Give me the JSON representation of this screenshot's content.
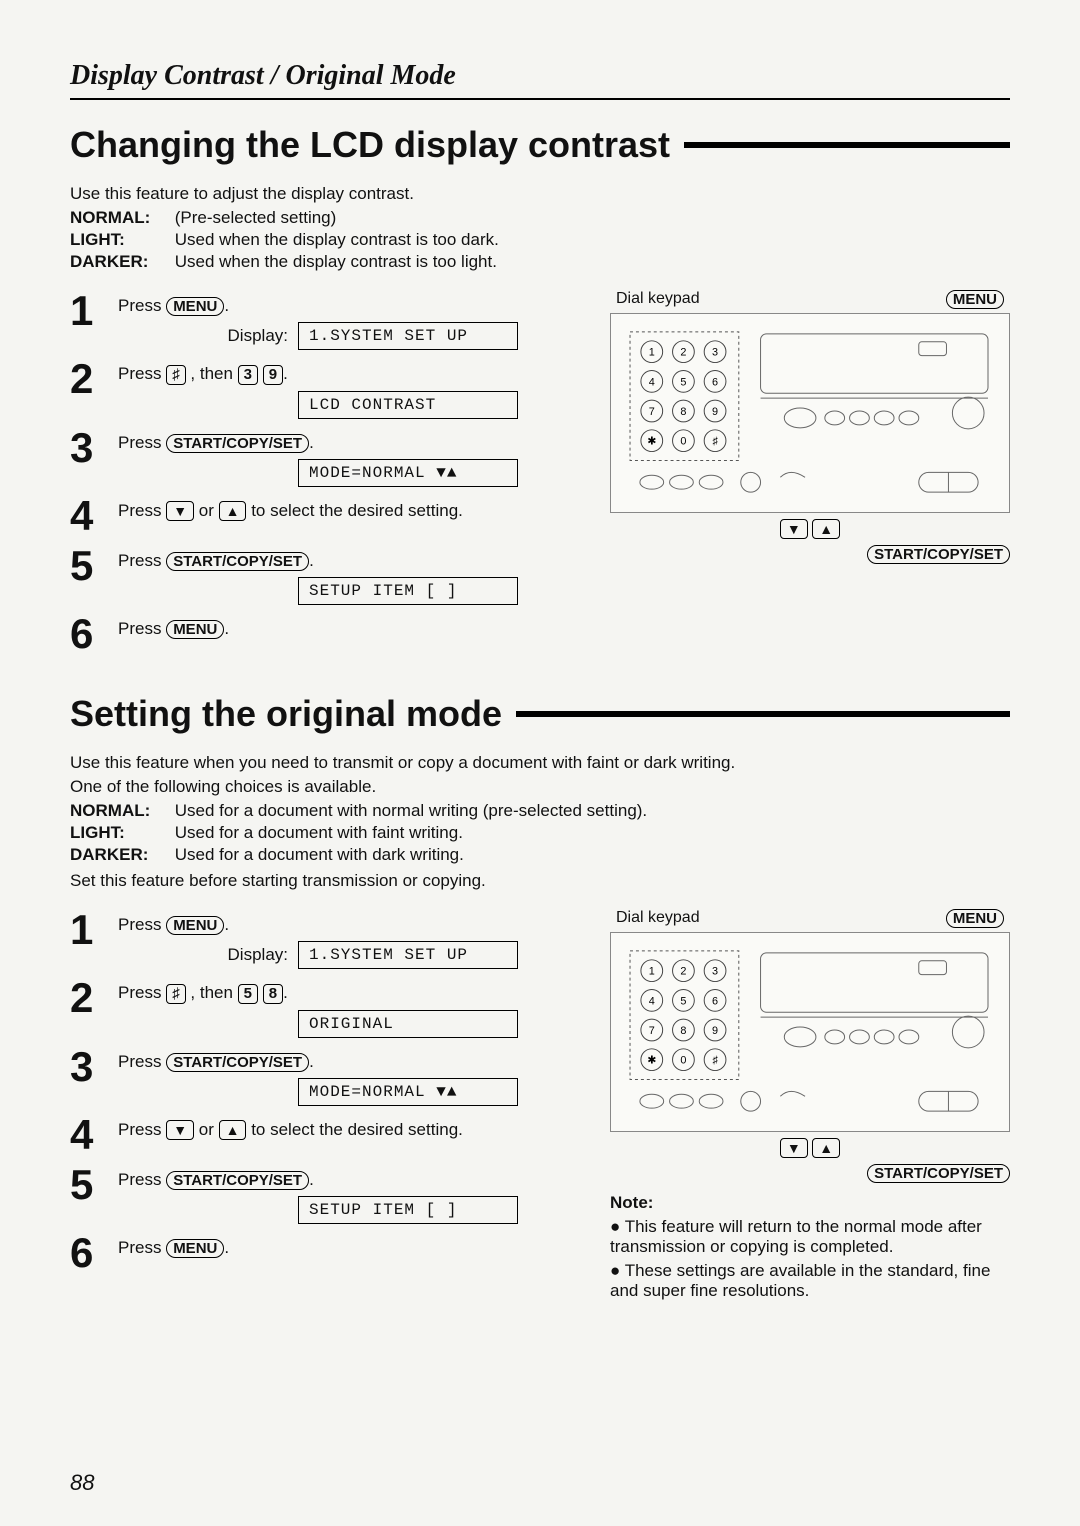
{
  "page_header": "Display Contrast / Original Mode",
  "page_number": "88",
  "section1": {
    "heading": "Changing the LCD display contrast",
    "intro": "Use this feature to adjust the display contrast.",
    "defs": [
      {
        "term": "NORMAL:",
        "desc": "(Pre-selected setting)"
      },
      {
        "term": "LIGHT:",
        "desc": "Used when the display contrast is too dark."
      },
      {
        "term": "DARKER:",
        "desc": "Used when the display contrast is too light."
      }
    ],
    "steps": [
      {
        "n": "1",
        "pre": "Press ",
        "btn": "MENU",
        "post": ".",
        "show_display_label": true,
        "lcd": "1.SYSTEM SET UP"
      },
      {
        "n": "2",
        "pre": "Press ",
        "key1": "♯",
        "mid1": " , then ",
        "key2": "3",
        "key3": "9",
        "post": ".",
        "lcd": "LCD CONTRAST"
      },
      {
        "n": "3",
        "pre": "Press ",
        "btn": "START/COPY/SET",
        "post": ".",
        "lcd": "MODE=NORMAL  ▼▲"
      },
      {
        "n": "4",
        "pre": "Press ",
        "arrow1": "▼",
        "mid_or": " or ",
        "arrow2": "▲",
        "post": " to select the desired setting."
      },
      {
        "n": "5",
        "pre": "Press ",
        "btn": "START/COPY/SET",
        "post": ".",
        "lcd": "SETUP ITEM [   ]"
      },
      {
        "n": "6",
        "pre": "Press ",
        "btn": "MENU",
        "post": "."
      }
    ],
    "panel": {
      "dial_label": "Dial keypad",
      "menu_label": "MENU",
      "down": "▼",
      "up": "▲",
      "start_label": "START/COPY/SET"
    }
  },
  "section2": {
    "heading": "Setting the original mode",
    "intro1": "Use this feature when you need to transmit or copy a document with faint or dark writing.",
    "intro2": "One of the following choices is available.",
    "defs": [
      {
        "term": "NORMAL:",
        "desc": "Used for a document with normal writing (pre-selected setting)."
      },
      {
        "term": "LIGHT:",
        "desc": "Used for a document with faint writing."
      },
      {
        "term": "DARKER:",
        "desc": "Used for a document with dark writing."
      }
    ],
    "intro3": "Set this feature before starting transmission or copying.",
    "steps": [
      {
        "n": "1",
        "pre": "Press ",
        "btn": "MENU",
        "post": ".",
        "show_display_label": true,
        "lcd": "1.SYSTEM SET UP"
      },
      {
        "n": "2",
        "pre": "Press ",
        "key1": "♯",
        "mid1": " , then ",
        "key2": "5",
        "key3": "8",
        "post": ".",
        "lcd": "ORIGINAL"
      },
      {
        "n": "3",
        "pre": "Press ",
        "btn": "START/COPY/SET",
        "post": ".",
        "lcd": "MODE=NORMAL  ▼▲"
      },
      {
        "n": "4",
        "pre": "Press ",
        "arrow1": "▼",
        "mid_or": " or ",
        "arrow2": "▲",
        "post": " to select the desired setting."
      },
      {
        "n": "5",
        "pre": "Press ",
        "btn": "START/COPY/SET",
        "post": ".",
        "lcd": "SETUP ITEM [   ]"
      },
      {
        "n": "6",
        "pre": "Press ",
        "btn": "MENU",
        "post": "."
      }
    ],
    "panel": {
      "dial_label": "Dial keypad",
      "menu_label": "MENU",
      "down": "▼",
      "up": "▲",
      "start_label": "START/COPY/SET"
    },
    "note": {
      "title": "Note:",
      "items": [
        "This feature will return to the normal mode after transmission or copying is completed.",
        "These settings are available in the standard, fine and super fine resolutions."
      ]
    }
  },
  "keypad": {
    "rows": [
      [
        "1",
        "2",
        "3"
      ],
      [
        "4",
        "5",
        "6"
      ],
      [
        "7",
        "8",
        "9"
      ],
      [
        "✱",
        "0",
        "♯"
      ]
    ]
  },
  "colors": {
    "text": "#111111",
    "bg": "#f5f5f2",
    "border": "#000000"
  }
}
